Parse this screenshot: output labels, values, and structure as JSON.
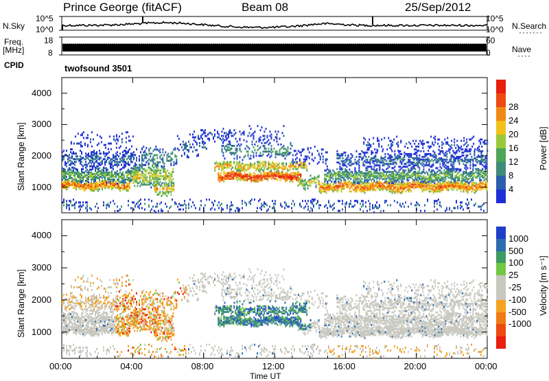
{
  "header": {
    "station": "Prince George (fitACF)",
    "beam": "Beam 08",
    "date": "25/Sep/2012"
  },
  "left_labels": {
    "nsky": "N.Sky",
    "freq": "Freq.",
    "mhz": "[MHz]",
    "cpid": "CPID"
  },
  "right_labels": {
    "nsearch": "N.Search",
    "nave": "Nave"
  },
  "cpid_name": "twofsound 3501",
  "noise_axis": {
    "top": "10^5",
    "bottom": "10^0"
  },
  "freq_axis": {
    "top": "18",
    "bottom": "8"
  },
  "nave_axis": {
    "top": "60",
    "bottom": "0"
  },
  "chart_data": [
    {
      "type": "heatmap",
      "panel": "power",
      "ylabel": "Slant Range [km]",
      "ylim": [
        180,
        4500
      ],
      "yticks": [
        "1000",
        "2000",
        "3000",
        "4000"
      ],
      "xlim_hours": [
        0,
        24
      ],
      "colorbar_label": "Power [dB]",
      "colorbar_ticks": [
        "4",
        "8",
        "12",
        "16",
        "20",
        "24",
        "28"
      ],
      "colorbar_colors": [
        "#1f2fd6",
        "#2b5fae",
        "#3f8a78",
        "#4ea457",
        "#9bc83a",
        "#f2c21c",
        "#f08a14",
        "#ec4a10",
        "#e81e0e"
      ]
    },
    {
      "type": "heatmap",
      "panel": "velocity",
      "ylabel": "Slant Range [km]",
      "ylim": [
        180,
        4500
      ],
      "yticks": [
        "1000",
        "2000",
        "3000",
        "4000"
      ],
      "xlim_hours": [
        0,
        24
      ],
      "colorbar_label": "Velocity [m s⁻¹]",
      "colorbar_ticks": [
        "1000",
        "500",
        "100",
        "25",
        "-25",
        "-100",
        "-500",
        "-1000"
      ],
      "colorbar_colors": [
        "#1f3fc8",
        "#2e6cb0",
        "#3f9a63",
        "#72c845",
        "#c8c8c0",
        "#c8c8c0",
        "#f4a321",
        "#f07a14",
        "#ec4a10",
        "#e81e0e"
      ]
    }
  ],
  "xaxis": {
    "label": "Time UT",
    "ticks": [
      "00:00",
      "04:00",
      "08:00",
      "12:00",
      "16:00",
      "20:00",
      "00:00"
    ]
  }
}
